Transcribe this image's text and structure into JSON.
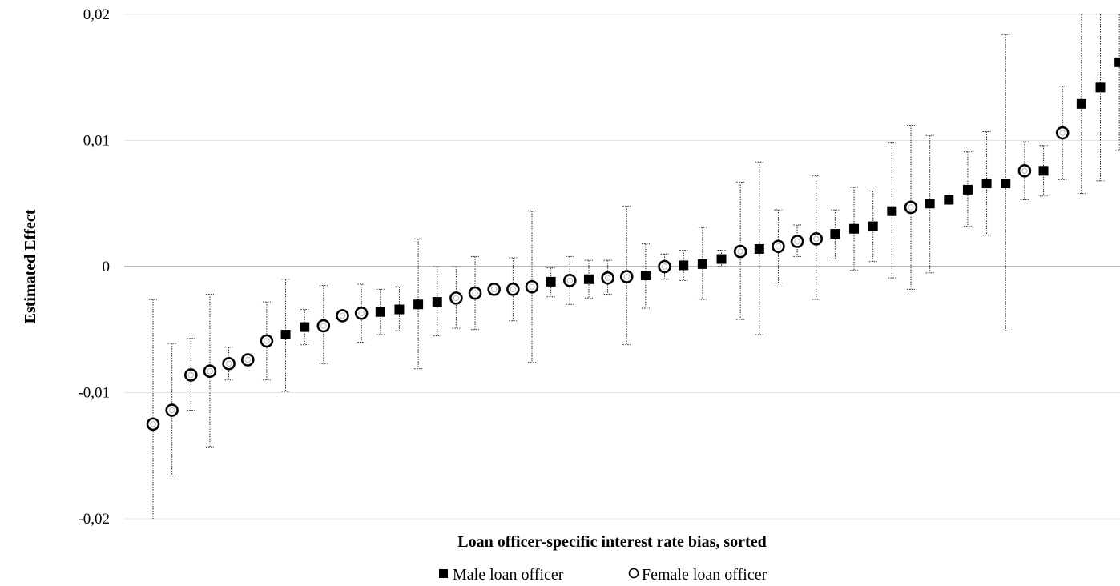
{
  "chart_data": {
    "type": "scatter",
    "title": "",
    "xlabel": "Loan officer-specific interest rate bias, sorted",
    "ylabel": "Estimated Effect",
    "ylim": [
      -0.02,
      0.02
    ],
    "yticks": [
      0.02,
      0.01,
      0,
      -0.01,
      -0.02
    ],
    "ytick_labels": [
      "0,02",
      "0,01",
      "0",
      "-0,01",
      "-0,02"
    ],
    "grid": true,
    "legend_position": "bottom-center",
    "error_bars": true,
    "series": [
      {
        "name": "Male loan officer",
        "marker": "filled-square",
        "color": "#000000",
        "points": [
          {
            "rank": 8,
            "y": -0.0054,
            "lo": -0.0099,
            "hi": -0.001
          },
          {
            "rank": 9,
            "y": -0.0048,
            "lo": -0.0062,
            "hi": -0.0034
          },
          {
            "rank": 13,
            "y": -0.0036,
            "lo": -0.0054,
            "hi": -0.0018
          },
          {
            "rank": 14,
            "y": -0.0034,
            "lo": -0.0051,
            "hi": -0.0016
          },
          {
            "rank": 15,
            "y": -0.003,
            "lo": -0.0081,
            "hi": 0.0022
          },
          {
            "rank": 16,
            "y": -0.0028,
            "lo": -0.0055,
            "hi": 0.0
          },
          {
            "rank": 22,
            "y": -0.0012,
            "lo": -0.0024,
            "hi": -0.0001
          },
          {
            "rank": 24,
            "y": -0.001,
            "lo": -0.0025,
            "hi": 0.0005
          },
          {
            "rank": 27,
            "y": -0.0007,
            "lo": -0.0033,
            "hi": 0.0018
          },
          {
            "rank": 29,
            "y": 0.0001,
            "lo": -0.0011,
            "hi": 0.0013
          },
          {
            "rank": 30,
            "y": 0.0002,
            "lo": -0.0026,
            "hi": 0.0031
          },
          {
            "rank": 31,
            "y": 0.0006,
            "lo": 0.0,
            "hi": 0.0013
          },
          {
            "rank": 33,
            "y": 0.0014,
            "lo": -0.0054,
            "hi": 0.0083
          },
          {
            "rank": 37,
            "y": 0.0026,
            "lo": 0.0006,
            "hi": 0.0045
          },
          {
            "rank": 38,
            "y": 0.003,
            "lo": -0.0003,
            "hi": 0.0063
          },
          {
            "rank": 39,
            "y": 0.0032,
            "lo": 0.0004,
            "hi": 0.006
          },
          {
            "rank": 40,
            "y": 0.0044,
            "lo": -0.0009,
            "hi": 0.0098
          },
          {
            "rank": 42,
            "y": 0.005,
            "lo": -0.0005,
            "hi": 0.0104
          },
          {
            "rank": 43,
            "y": 0.0053,
            "lo": 0.0053,
            "hi": 0.0053
          },
          {
            "rank": 44,
            "y": 0.0061,
            "lo": 0.0032,
            "hi": 0.0091
          },
          {
            "rank": 45,
            "y": 0.0066,
            "lo": 0.0025,
            "hi": 0.0107
          },
          {
            "rank": 46,
            "y": 0.0066,
            "lo": -0.0051,
            "hi": 0.0184
          },
          {
            "rank": 48,
            "y": 0.0076,
            "lo": 0.0056,
            "hi": 0.0096
          },
          {
            "rank": 50,
            "y": 0.0129,
            "lo": 0.0058,
            "hi": 0.02
          },
          {
            "rank": 51,
            "y": 0.0142,
            "lo": 0.0068,
            "hi": 0.02
          },
          {
            "rank": 52,
            "y": 0.0162,
            "lo": 0.0092,
            "hi": 0.02
          }
        ]
      },
      {
        "name": "Female loan officer",
        "marker": "open-circle",
        "color": "#000000",
        "points": [
          {
            "rank": 1,
            "y": -0.0125,
            "lo": -0.02,
            "hi": -0.0026
          },
          {
            "rank": 2,
            "y": -0.0114,
            "lo": -0.0166,
            "hi": -0.0061
          },
          {
            "rank": 3,
            "y": -0.0086,
            "lo": -0.0114,
            "hi": -0.0057
          },
          {
            "rank": 4,
            "y": -0.0083,
            "lo": -0.0143,
            "hi": -0.0022
          },
          {
            "rank": 5,
            "y": -0.0077,
            "lo": -0.009,
            "hi": -0.0064
          },
          {
            "rank": 6,
            "y": -0.0074,
            "lo": -0.0074,
            "hi": -0.0074
          },
          {
            "rank": 7,
            "y": -0.0059,
            "lo": -0.009,
            "hi": -0.0028
          },
          {
            "rank": 10,
            "y": -0.0047,
            "lo": -0.0077,
            "hi": -0.0015
          },
          {
            "rank": 11,
            "y": -0.0039,
            "lo": -0.0043,
            "hi": -0.0035
          },
          {
            "rank": 12,
            "y": -0.0037,
            "lo": -0.006,
            "hi": -0.0014
          },
          {
            "rank": 17,
            "y": -0.0025,
            "lo": -0.0049,
            "hi": 0.0
          },
          {
            "rank": 18,
            "y": -0.0021,
            "lo": -0.005,
            "hi": 0.0008
          },
          {
            "rank": 19,
            "y": -0.0018,
            "lo": -0.0018,
            "hi": -0.0018
          },
          {
            "rank": 20,
            "y": -0.0018,
            "lo": -0.0043,
            "hi": 0.0007
          },
          {
            "rank": 21,
            "y": -0.0016,
            "lo": -0.0076,
            "hi": 0.0044
          },
          {
            "rank": 23,
            "y": -0.0011,
            "lo": -0.003,
            "hi": 0.0008
          },
          {
            "rank": 25,
            "y": -0.0009,
            "lo": -0.0022,
            "hi": 0.0005
          },
          {
            "rank": 26,
            "y": -0.0008,
            "lo": -0.0062,
            "hi": 0.0048
          },
          {
            "rank": 28,
            "y": 0.0,
            "lo": -0.001,
            "hi": 0.001
          },
          {
            "rank": 32,
            "y": 0.0012,
            "lo": -0.0042,
            "hi": 0.0067
          },
          {
            "rank": 34,
            "y": 0.0016,
            "lo": -0.0013,
            "hi": 0.0045
          },
          {
            "rank": 35,
            "y": 0.002,
            "lo": 0.0008,
            "hi": 0.0033
          },
          {
            "rank": 36,
            "y": 0.0022,
            "lo": -0.0026,
            "hi": 0.0072
          },
          {
            "rank": 41,
            "y": 0.0047,
            "lo": -0.0018,
            "hi": 0.0112
          },
          {
            "rank": 47,
            "y": 0.0076,
            "lo": 0.0053,
            "hi": 0.0099
          },
          {
            "rank": 49,
            "y": 0.0106,
            "lo": 0.0069,
            "hi": 0.0143
          }
        ]
      }
    ]
  },
  "legend": {
    "male_label": "Male loan officer",
    "female_label": "Female loan officer"
  }
}
